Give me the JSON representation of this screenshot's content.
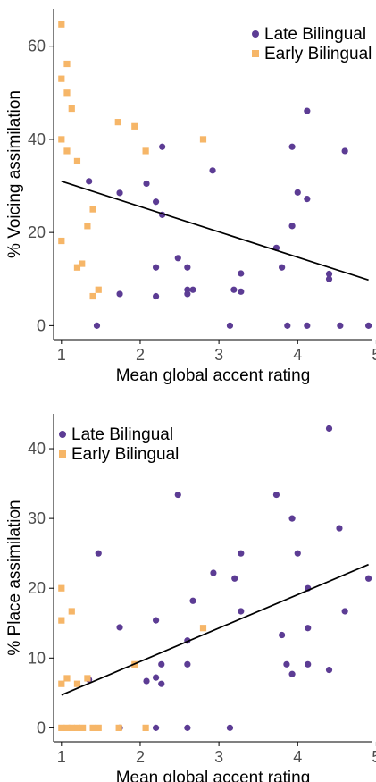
{
  "colors": {
    "late": "#5c3c94",
    "early": "#f6b668",
    "fit": "#000000",
    "axis": "#000000",
    "tick_text": "#4d4d4d"
  },
  "chart_data": [
    {
      "type": "scatter",
      "title": "",
      "xlabel": "Mean global accent rating",
      "ylabel": "% Voicing assimilation",
      "xlim": [
        0.9,
        4.95
      ],
      "ylim": [
        -3,
        68
      ],
      "xticks": [
        1,
        2,
        3,
        4,
        5
      ],
      "yticks": [
        0,
        20,
        40,
        60
      ],
      "grid": false,
      "legend_position": "top-right",
      "fit_line": {
        "x": [
          1.0,
          4.9
        ],
        "y": [
          31,
          9.8
        ]
      },
      "series": [
        {
          "name": "Late Bilingual",
          "marker": "circle",
          "points": [
            [
              1.35,
              31
            ],
            [
              1.45,
              0
            ],
            [
              1.74,
              28.5
            ],
            [
              1.74,
              6.8
            ],
            [
              2.08,
              30.5
            ],
            [
              2.2,
              26.6
            ],
            [
              2.2,
              12.5
            ],
            [
              2.2,
              6.3
            ],
            [
              2.28,
              38.4
            ],
            [
              2.28,
              23.8
            ],
            [
              2.48,
              14.5
            ],
            [
              2.6,
              12.5
            ],
            [
              2.6,
              7.7
            ],
            [
              2.6,
              6.8
            ],
            [
              2.67,
              7.7
            ],
            [
              2.92,
              33.3
            ],
            [
              3.14,
              0
            ],
            [
              3.19,
              7.7
            ],
            [
              3.28,
              11.2
            ],
            [
              3.28,
              7.3
            ],
            [
              3.73,
              16.7
            ],
            [
              3.8,
              12.5
            ],
            [
              3.87,
              0
            ],
            [
              3.93,
              38.4
            ],
            [
              3.93,
              21.4
            ],
            [
              4.0,
              28.6
            ],
            [
              4.12,
              46.1
            ],
            [
              4.12,
              27.2
            ],
            [
              4.12,
              0
            ],
            [
              4.4,
              11.1
            ],
            [
              4.4,
              10
            ],
            [
              4.54,
              0
            ],
            [
              4.6,
              37.5
            ],
            [
              4.9,
              0
            ]
          ]
        },
        {
          "name": "Early Bilingual",
          "marker": "square",
          "points": [
            [
              1.0,
              64.7
            ],
            [
              1.0,
              53
            ],
            [
              1.0,
              40
            ],
            [
              1.0,
              18.2
            ],
            [
              1.07,
              56.2
            ],
            [
              1.07,
              50
            ],
            [
              1.07,
              37.5
            ],
            [
              1.13,
              46.6
            ],
            [
              1.2,
              35.3
            ],
            [
              1.2,
              12.5
            ],
            [
              1.26,
              13.3
            ],
            [
              1.33,
              21.4
            ],
            [
              1.4,
              25
            ],
            [
              1.4,
              6.3
            ],
            [
              1.47,
              7.7
            ],
            [
              1.72,
              43.7
            ],
            [
              1.93,
              42.8
            ],
            [
              2.07,
              37.5
            ],
            [
              2.8,
              40
            ]
          ]
        }
      ]
    },
    {
      "type": "scatter",
      "title": "",
      "xlabel": "Mean global accent rating",
      "ylabel": "% Place assimilation",
      "xlim": [
        0.9,
        4.95
      ],
      "ylim": [
        -2,
        45
      ],
      "xticks": [
        1,
        2,
        3,
        4,
        5
      ],
      "yticks": [
        0,
        10,
        20,
        30,
        40
      ],
      "grid": false,
      "legend_position": "top-left",
      "fit_line": {
        "x": [
          1.0,
          4.9
        ],
        "y": [
          4.7,
          23.4
        ]
      },
      "series": [
        {
          "name": "Late Bilingual",
          "marker": "circle",
          "points": [
            [
              1.35,
              6.9
            ],
            [
              1.47,
              25
            ],
            [
              1.74,
              14.4
            ],
            [
              1.74,
              0
            ],
            [
              2.08,
              6.7
            ],
            [
              2.2,
              15.4
            ],
            [
              2.2,
              7.2
            ],
            [
              2.2,
              0
            ],
            [
              2.27,
              9.1
            ],
            [
              2.27,
              6.3
            ],
            [
              2.48,
              33.4
            ],
            [
              2.6,
              12.5
            ],
            [
              2.6,
              9.1
            ],
            [
              2.6,
              0
            ],
            [
              2.67,
              18.2
            ],
            [
              2.93,
              22.2
            ],
            [
              3.14,
              0
            ],
            [
              3.2,
              21.4
            ],
            [
              3.28,
              25
            ],
            [
              3.28,
              16.7
            ],
            [
              3.73,
              33.4
            ],
            [
              3.8,
              13.3
            ],
            [
              3.86,
              9.1
            ],
            [
              3.93,
              30
            ],
            [
              3.93,
              7.7
            ],
            [
              4.0,
              25
            ],
            [
              4.13,
              20
            ],
            [
              4.13,
              14.3
            ],
            [
              4.13,
              9.1
            ],
            [
              4.4,
              42.9
            ],
            [
              4.4,
              8.3
            ],
            [
              4.53,
              28.6
            ],
            [
              4.6,
              16.7
            ],
            [
              4.9,
              21.4
            ]
          ]
        },
        {
          "name": "Early Bilingual",
          "marker": "square",
          "points": [
            [
              1.0,
              20
            ],
            [
              1.0,
              15.4
            ],
            [
              1.0,
              6.3
            ],
            [
              1.0,
              0
            ],
            [
              1.07,
              7.1
            ],
            [
              1.07,
              0
            ],
            [
              1.13,
              16.7
            ],
            [
              1.13,
              0
            ],
            [
              1.2,
              6.3
            ],
            [
              1.2,
              0
            ],
            [
              1.27,
              0
            ],
            [
              1.33,
              7.1
            ],
            [
              1.4,
              0
            ],
            [
              1.47,
              0
            ],
            [
              1.73,
              0
            ],
            [
              1.93,
              9.1
            ],
            [
              2.07,
              0
            ],
            [
              2.8,
              14.3
            ]
          ]
        }
      ]
    }
  ]
}
